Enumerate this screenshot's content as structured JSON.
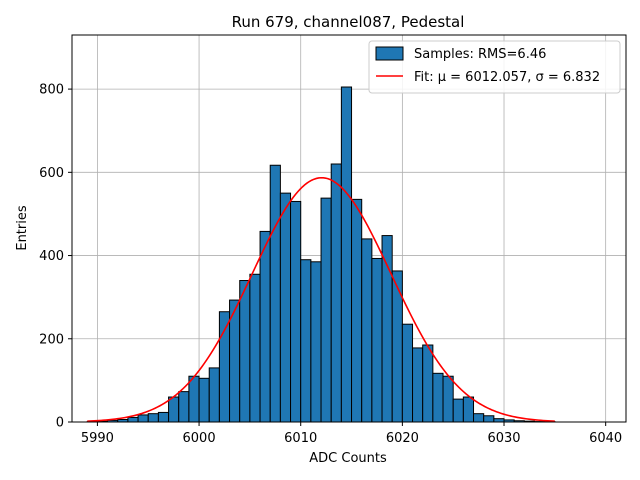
{
  "chart_data": {
    "type": "bar",
    "title": "Run 679, channel087, Pedestal",
    "xlabel": "ADC Counts",
    "ylabel": "Entries",
    "xlim": [
      5987.5,
      6042.0
    ],
    "ylim": [
      0,
      930
    ],
    "xticks": [
      5990,
      6000,
      6010,
      6020,
      6030,
      6040
    ],
    "yticks": [
      0,
      200,
      400,
      600,
      800
    ],
    "grid": true,
    "legend_position": "top-right",
    "bin_width": 1,
    "bins_start": [
      5989,
      5990,
      5991,
      5992,
      5993,
      5994,
      5995,
      5996,
      5997,
      5998,
      5999,
      6000,
      6001,
      6002,
      6003,
      6004,
      6005,
      6006,
      6007,
      6008,
      6009,
      6010,
      6011,
      6012,
      6013,
      6014,
      6015,
      6016,
      6017,
      6018,
      6019,
      6020,
      6021,
      6022,
      6023,
      6024,
      6025,
      6026,
      6027,
      6028,
      6029,
      6030,
      6031,
      6032,
      6033,
      6034
    ],
    "counts": [
      1,
      2,
      4,
      6,
      11,
      17,
      20,
      23,
      60,
      73,
      110,
      105,
      130,
      265,
      293,
      340,
      355,
      458,
      617,
      550,
      530,
      390,
      385,
      538,
      620,
      805,
      535,
      440,
      393,
      448,
      363,
      235,
      178,
      185,
      117,
      110,
      55,
      60,
      20,
      15,
      8,
      5,
      3,
      2,
      1,
      1
    ],
    "series": [
      {
        "name": "Samples: RMS=6.46",
        "kind": "histogram",
        "color": "#1f77b4"
      },
      {
        "name": "Fit: μ = 6012.057, σ = 6.832",
        "kind": "line",
        "color": "#ff0000",
        "mu": 6012.057,
        "sigma": 6.832,
        "amplitude": 587,
        "x_range": [
          5989,
          6035
        ]
      }
    ],
    "legend": {
      "hist_label": "Samples: RMS=6.46",
      "fit_label": "Fit: μ = 6012.057, σ = 6.832"
    }
  }
}
